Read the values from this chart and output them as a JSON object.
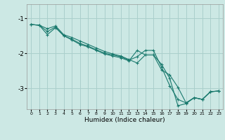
{
  "xlabel": "Humidex (Indice chaleur)",
  "background_color": "#cce8e4",
  "grid_color": "#aacfcc",
  "line_color": "#1a7a6e",
  "marker_color": "#1a7a6e",
  "xlim": [
    -0.5,
    23.5
  ],
  "ylim": [
    -3.6,
    -0.6
  ],
  "yticks": [
    -3,
    -2,
    -1
  ],
  "xticks": [
    0,
    1,
    2,
    3,
    4,
    5,
    6,
    7,
    8,
    9,
    10,
    11,
    12,
    13,
    14,
    15,
    16,
    17,
    18,
    19,
    20,
    21,
    22,
    23
  ],
  "series1_x": [
    0,
    1,
    2,
    3,
    4,
    5,
    6,
    7,
    8,
    9,
    10,
    11,
    12,
    13,
    14,
    15,
    16,
    17,
    18,
    19,
    20,
    21,
    22,
    23
  ],
  "series1_y": [
    -1.18,
    -1.2,
    -1.3,
    -1.22,
    -1.47,
    -1.55,
    -1.65,
    -1.75,
    -1.85,
    -1.95,
    -2.02,
    -2.08,
    -2.18,
    -2.28,
    -2.05,
    -2.05,
    -2.32,
    -2.72,
    -3.5,
    -3.44,
    -3.27,
    -3.32,
    -3.1,
    -3.08
  ],
  "series2_x": [
    0,
    1,
    2,
    3,
    4,
    5,
    6,
    7,
    8,
    9,
    10,
    11,
    12,
    13,
    14,
    15,
    16,
    17,
    18,
    19,
    20,
    21,
    22,
    23
  ],
  "series2_y": [
    -1.18,
    -1.2,
    -1.47,
    -1.27,
    -1.5,
    -1.62,
    -1.75,
    -1.82,
    -1.92,
    -2.02,
    -2.08,
    -2.13,
    -2.22,
    -1.92,
    -2.05,
    -2.05,
    -2.48,
    -2.62,
    -2.97,
    -3.42,
    -3.27,
    -3.32,
    -3.1,
    -3.08
  ],
  "series3_x": [
    0,
    1,
    2,
    3,
    4,
    5,
    6,
    7,
    8,
    9,
    10,
    11,
    12,
    13,
    14,
    15,
    16,
    17,
    18,
    19,
    20,
    21,
    22,
    23
  ],
  "series3_y": [
    -1.18,
    -1.2,
    -1.38,
    -1.25,
    -1.5,
    -1.6,
    -1.72,
    -1.8,
    -1.9,
    -2.0,
    -2.05,
    -2.1,
    -2.2,
    -2.1,
    -1.92,
    -1.92,
    -2.4,
    -2.93,
    -3.32,
    -3.42,
    -3.27,
    -3.32,
    -3.1,
    -3.08
  ]
}
